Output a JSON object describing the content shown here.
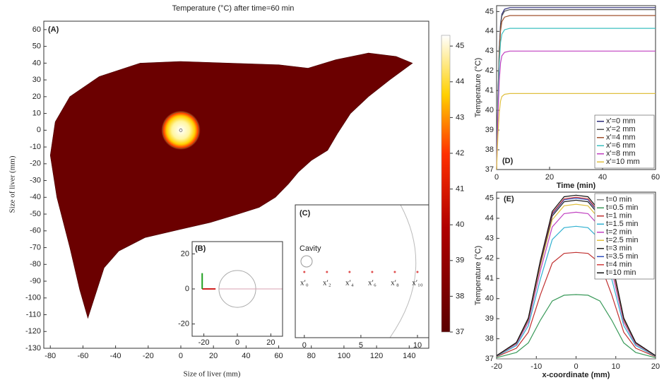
{
  "chart_data": [
    {
      "type": "heatmap",
      "label": "(A)",
      "title": "Temperature (°C) after time=60 min",
      "xlabel": "Size of liver (mm)",
      "ylabel": "Size of liver (mm)",
      "xlim": [
        -84,
        152
      ],
      "ylim": [
        -130,
        65
      ],
      "xticks": [
        -80,
        -60,
        -40,
        -20,
        0,
        20,
        40,
        60,
        80,
        100,
        120,
        140
      ],
      "yticks": [
        -130,
        -120,
        -110,
        -100,
        -90,
        -80,
        -70,
        -60,
        -50,
        -40,
        -30,
        -20,
        -10,
        0,
        10,
        20,
        30,
        40,
        50,
        60
      ],
      "clim": [
        37,
        45.3
      ],
      "cticks": [
        37,
        38,
        39,
        40,
        41,
        42,
        43,
        44,
        45
      ]
    },
    {
      "type": "schematic",
      "label": "(B)",
      "xlim": [
        -27,
        27
      ],
      "ylim": [
        -27,
        27
      ],
      "xticks": [
        -20,
        0,
        20
      ],
      "yticks": [
        20,
        0,
        -20
      ]
    },
    {
      "type": "points",
      "label": "(C)",
      "annotation": "Cavity",
      "xlim": [
        -0.8,
        11
      ],
      "xticks": [
        0,
        5,
        10
      ],
      "x": [
        0,
        2,
        4,
        6,
        8,
        10
      ],
      "point_labels": [
        "x′₀",
        "x′₂",
        "x′₄",
        "x′₆",
        "x′₈",
        "x′₁₀"
      ],
      "color": "#e05050"
    },
    {
      "type": "line",
      "label": "(D)",
      "xlabel": "Time (min)",
      "ylabel": "Temperature (°C)",
      "xlim": [
        0,
        60
      ],
      "ylim": [
        37,
        45.3
      ],
      "xticks": [
        0,
        20,
        40,
        60
      ],
      "yticks": [
        37,
        38,
        39,
        40,
        41,
        42,
        43,
        44,
        45
      ],
      "legend": "lower right",
      "x": [
        0,
        0.5,
        1,
        1.5,
        2,
        3,
        5,
        10,
        20,
        30,
        40,
        50,
        60
      ],
      "series": [
        {
          "name": "x'=0 mm",
          "color": "#2b2b7a",
          "values": [
            37,
            40.69,
            43.15,
            44.38,
            44.87,
            45.12,
            45.2,
            45.2,
            45.2,
            45.2,
            45.2,
            45.2,
            45.2
          ]
        },
        {
          "name": "x'=2 mm",
          "color": "#555555",
          "values": [
            37,
            40.65,
            43.08,
            44.29,
            44.78,
            45.02,
            45.1,
            45.1,
            45.1,
            45.1,
            45.1,
            45.1,
            45.1
          ]
        },
        {
          "name": "x'=4 mm",
          "color": "#a0522d",
          "values": [
            37,
            40.51,
            42.85,
            44.02,
            44.49,
            44.72,
            44.8,
            44.8,
            44.8,
            44.8,
            44.8,
            44.8,
            44.8
          ]
        },
        {
          "name": "x'=6 mm",
          "color": "#3cc0c0",
          "values": [
            37,
            40.22,
            42.36,
            43.44,
            43.86,
            44.08,
            44.15,
            44.15,
            44.15,
            44.15,
            44.15,
            44.15,
            44.15
          ]
        },
        {
          "name": "x'=8 mm",
          "color": "#c040c0",
          "values": [
            37,
            39.7,
            41.5,
            42.4,
            42.76,
            42.94,
            43,
            43,
            43,
            43,
            43,
            43,
            43
          ]
        },
        {
          "name": "x'=10 mm",
          "color": "#e0c040",
          "values": [
            37,
            38.73,
            39.89,
            40.47,
            40.7,
            40.81,
            40.85,
            40.85,
            40.85,
            40.85,
            40.85,
            40.85,
            40.85
          ]
        }
      ]
    },
    {
      "type": "line",
      "label": "(E)",
      "xlabel": "x-coordinate (mm)",
      "ylabel": "Temperature (°C)",
      "xlim": [
        -20,
        20
      ],
      "ylim": [
        37,
        45.3
      ],
      "xticks": [
        -20,
        -10,
        0,
        10,
        20
      ],
      "yticks": [
        37,
        38,
        39,
        40,
        41,
        42,
        43,
        44,
        45
      ],
      "legend": "upper right",
      "x": [
        -20,
        -15,
        -12,
        -9,
        -6,
        -3,
        0,
        3,
        6,
        9,
        12,
        15,
        20
      ],
      "series": [
        {
          "name": "t=0 min",
          "color": "#888888",
          "values": [
            37,
            37,
            37,
            37,
            37,
            37,
            37,
            37,
            37,
            37,
            37,
            37,
            37
          ]
        },
        {
          "name": "t=0.5 min",
          "color": "#3a9a5a",
          "values": [
            37.06,
            37.32,
            37.8,
            38.92,
            39.88,
            40.17,
            40.2,
            40.17,
            39.88,
            38.92,
            37.8,
            37.32,
            37.06
          ]
        },
        {
          "name": "t=1 min",
          "color": "#c03030",
          "values": [
            37.11,
            37.53,
            38.33,
            40.18,
            41.77,
            42.25,
            42.3,
            42.25,
            41.77,
            40.18,
            38.33,
            37.53,
            37.11
          ]
        },
        {
          "name": "t=1.5 min",
          "color": "#30b0d0",
          "values": [
            37.13,
            37.66,
            38.65,
            40.96,
            42.94,
            43.53,
            43.6,
            43.53,
            42.94,
            40.96,
            38.65,
            37.66,
            37.13
          ]
        },
        {
          "name": "t=2 min",
          "color": "#c040c0",
          "values": [
            37.15,
            37.73,
            38.83,
            41.38,
            43.57,
            44.23,
            44.3,
            44.23,
            43.57,
            41.38,
            38.83,
            37.73,
            37.15
          ]
        },
        {
          "name": "t=2.5 min",
          "color": "#e0c040",
          "values": [
            37.15,
            37.77,
            38.93,
            41.62,
            43.93,
            44.62,
            44.7,
            44.62,
            43.93,
            41.62,
            38.93,
            37.77,
            37.15
          ]
        },
        {
          "name": "t=3 min",
          "color": "#222222",
          "values": [
            37.16,
            37.79,
            38.98,
            41.74,
            44.11,
            44.82,
            44.9,
            44.82,
            44.11,
            41.74,
            38.98,
            37.79,
            37.16
          ]
        },
        {
          "name": "t=3.5 min",
          "color": "#3050c0",
          "values": [
            37.16,
            37.8,
            39,
            41.8,
            44.2,
            44.92,
            45,
            44.92,
            44.2,
            41.8,
            39,
            37.8,
            37.16
          ]
        },
        {
          "name": "t=4 min",
          "color": "#d04040",
          "values": [
            37.16,
            37.81,
            39.01,
            41.83,
            44.25,
            44.97,
            45.05,
            44.97,
            44.25,
            41.83,
            39.01,
            37.81,
            37.16
          ]
        },
        {
          "name": "t=10 min",
          "color": "#111111",
          "values": [
            37.16,
            37.82,
            39.04,
            41.89,
            44.34,
            45.07,
            45.15,
            45.07,
            44.34,
            41.89,
            39.04,
            37.82,
            37.16
          ]
        }
      ]
    }
  ]
}
